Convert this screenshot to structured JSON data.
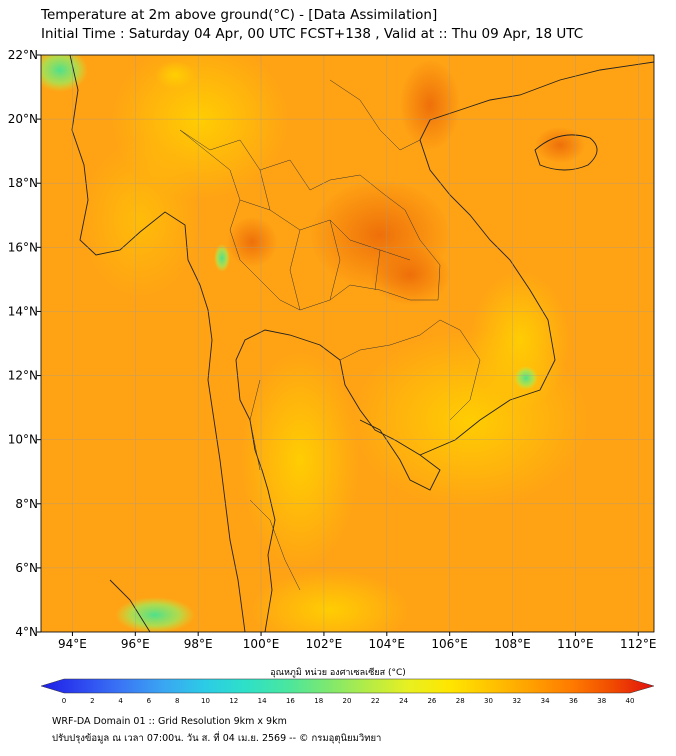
{
  "header": {
    "title": "Temperature at 2m above ground(°C) - [Data Assimilation]",
    "subtitle": "Initial Time : Saturday 04 Apr, 00 UTC FCST+138 , Valid at :: Thu 09 Apr, 18 UTC"
  },
  "map": {
    "lon_labels": [
      "94°E",
      "96°E",
      "98°E",
      "100°E",
      "102°E",
      "104°E",
      "106°E",
      "108°E",
      "110°E",
      "112°E"
    ],
    "lat_labels": [
      "22°N",
      "20°N",
      "18°N",
      "16°N",
      "14°N",
      "12°N",
      "10°N",
      "8°N",
      "6°N",
      "4°N"
    ],
    "lon_range": [
      93,
      112.5
    ],
    "lat_range": [
      4,
      22
    ],
    "grid": true
  },
  "colorbar": {
    "label": "อุณหภูมิ หน่วย องศาเซลเซียส (°C)",
    "ticks": [
      "0",
      "2",
      "4",
      "6",
      "8",
      "10",
      "12",
      "14",
      "16",
      "18",
      "20",
      "22",
      "24",
      "26",
      "28",
      "30",
      "32",
      "34",
      "36",
      "38",
      "40"
    ],
    "colors": [
      "#1e1ee6",
      "#2e48f0",
      "#3a78f5",
      "#3aa6f2",
      "#2ccbe6",
      "#2ee0c8",
      "#48e6a0",
      "#7ce870",
      "#b4ec46",
      "#e8f020",
      "#ffe600",
      "#ffc400",
      "#ffa000",
      "#ff7a00",
      "#f04a00",
      "#e01010"
    ],
    "range": [
      0,
      40
    ]
  },
  "footer": {
    "line1": "WRF-DA Domain 01 :: Grid Resolution 9km x 9km",
    "line2": "ปรับปรุงข้อมูล ณ เวลา 07:00น. วัน ส. ที่ 04 เม.ย. 2569 -- © กรมอุตุนิยมวิทยา"
  }
}
